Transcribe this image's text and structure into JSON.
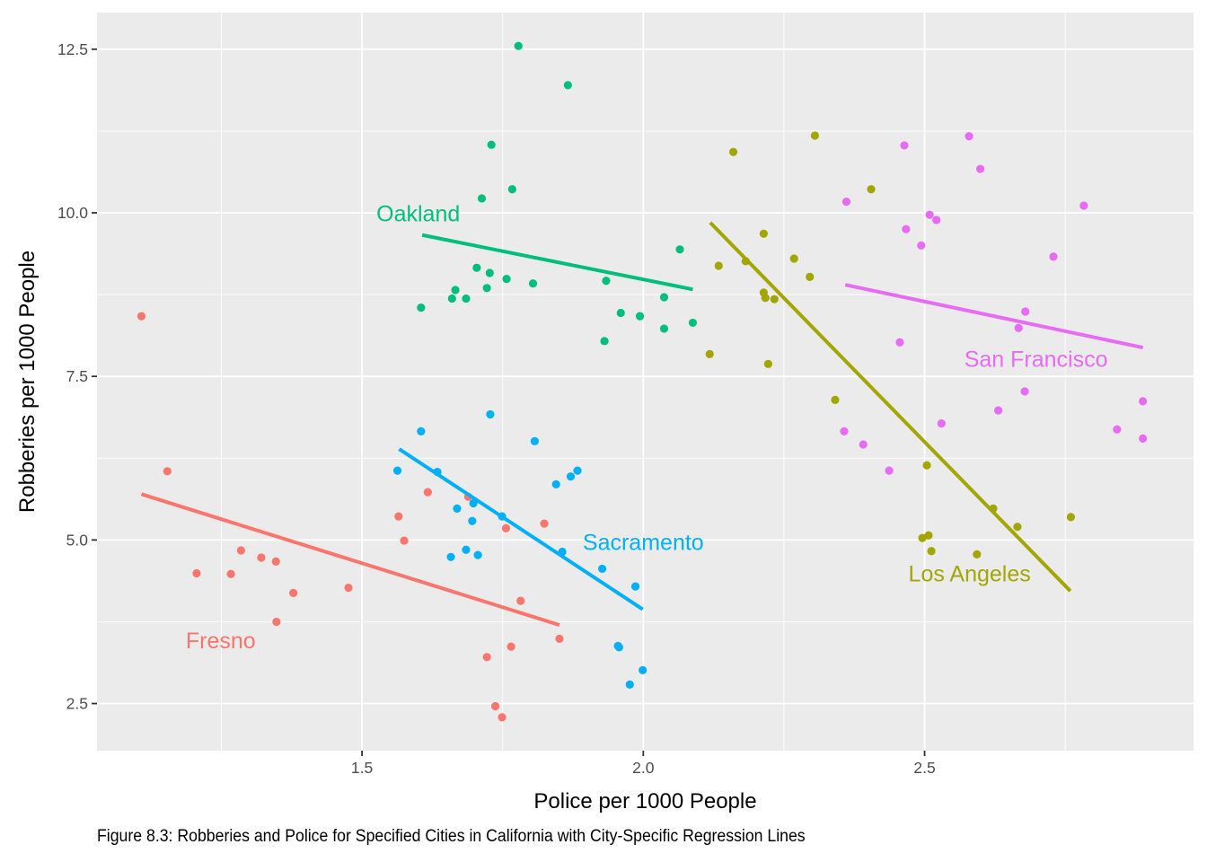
{
  "caption": "Figure 8.3: Robberies and Police for Specified Cities in California with City-Specific Regression Lines",
  "chart_data": {
    "type": "scatter",
    "title": "",
    "xlabel": "Police per 1000 People",
    "ylabel": "Robberies per 1000 People",
    "xlim": [
      1.029,
      2.978
    ],
    "ylim": [
      1.78,
      13.06
    ],
    "x_ticks": [
      1.5,
      2.0,
      2.5
    ],
    "x_tick_labels": [
      "1.5",
      "2.0",
      "2.5"
    ],
    "x_minor_ticks": [
      1.25,
      1.75,
      2.25,
      2.75
    ],
    "y_ticks": [
      2.5,
      5.0,
      7.5,
      10.0,
      12.5
    ],
    "y_tick_labels": [
      "2.5",
      "5.0",
      "7.5",
      "10.0",
      "12.5"
    ],
    "y_minor_ticks": [
      3.75,
      6.25,
      8.75,
      11.25
    ],
    "grid": true,
    "legend": "none (direct labels)",
    "background": "#EBEBEB",
    "series": [
      {
        "name": "Fresno",
        "color": "#F8766D",
        "label": {
          "text": "Fresno",
          "x": 1.249,
          "y": 3.47
        },
        "points": [
          [
            1.108,
            8.42
          ],
          [
            1.154,
            6.05
          ],
          [
            1.206,
            4.49
          ],
          [
            1.267,
            4.48
          ],
          [
            1.285,
            4.84
          ],
          [
            1.321,
            4.73
          ],
          [
            1.347,
            4.67
          ],
          [
            1.378,
            4.19
          ],
          [
            1.476,
            4.27
          ],
          [
            1.348,
            3.75
          ],
          [
            1.617,
            5.73
          ],
          [
            1.689,
            5.66
          ],
          [
            1.565,
            5.36
          ],
          [
            1.575,
            4.99
          ],
          [
            1.756,
            5.18
          ],
          [
            1.824,
            5.25
          ],
          [
            1.782,
            4.07
          ],
          [
            1.851,
            3.49
          ],
          [
            1.765,
            3.37
          ],
          [
            1.722,
            3.21
          ],
          [
            1.737,
            2.46
          ],
          [
            1.749,
            2.29
          ]
        ],
        "regression": {
          "x": [
            1.108,
            1.851
          ],
          "y": [
            5.7,
            3.7
          ]
        }
      },
      {
        "name": "Los Angeles",
        "color": "#A3A500",
        "label": {
          "text": "Los Angeles",
          "x": 2.58,
          "y": 4.49
        },
        "points": [
          [
            2.305,
            11.18
          ],
          [
            2.16,
            10.93
          ],
          [
            2.405,
            10.36
          ],
          [
            2.214,
            9.68
          ],
          [
            2.134,
            9.19
          ],
          [
            2.182,
            9.26
          ],
          [
            2.268,
            9.3
          ],
          [
            2.296,
            9.02
          ],
          [
            2.214,
            8.78
          ],
          [
            2.217,
            8.7
          ],
          [
            2.233,
            8.68
          ],
          [
            2.118,
            7.84
          ],
          [
            2.222,
            7.69
          ],
          [
            2.341,
            7.14
          ],
          [
            2.504,
            6.14
          ],
          [
            2.622,
            5.48
          ],
          [
            2.665,
            5.2
          ],
          [
            2.76,
            5.35
          ],
          [
            2.496,
            5.03
          ],
          [
            2.507,
            5.07
          ],
          [
            2.512,
            4.83
          ],
          [
            2.593,
            4.78
          ]
        ],
        "regression": {
          "x": [
            2.119,
            2.759
          ],
          "y": [
            9.85,
            4.22
          ]
        }
      },
      {
        "name": "Oakland",
        "color": "#00BF7D",
        "label": {
          "text": "Oakland",
          "x": 1.6,
          "y": 9.99
        },
        "points": [
          [
            1.778,
            12.55
          ],
          [
            1.866,
            11.95
          ],
          [
            1.73,
            11.04
          ],
          [
            1.767,
            10.36
          ],
          [
            1.713,
            10.22
          ],
          [
            2.065,
            9.44
          ],
          [
            1.704,
            9.16
          ],
          [
            1.727,
            9.08
          ],
          [
            1.757,
            8.99
          ],
          [
            1.804,
            8.92
          ],
          [
            1.722,
            8.85
          ],
          [
            1.934,
            8.96
          ],
          [
            1.666,
            8.82
          ],
          [
            1.66,
            8.69
          ],
          [
            1.685,
            8.69
          ],
          [
            1.605,
            8.55
          ],
          [
            2.037,
            8.71
          ],
          [
            1.96,
            8.47
          ],
          [
            1.994,
            8.42
          ],
          [
            2.088,
            8.32
          ],
          [
            2.037,
            8.23
          ],
          [
            1.931,
            8.04
          ]
        ],
        "regression": {
          "x": [
            1.607,
            2.088
          ],
          "y": [
            9.66,
            8.83
          ]
        }
      },
      {
        "name": "Sacramento",
        "color": "#00B0F6",
        "label": {
          "text": "Sacramento",
          "x": 2.0,
          "y": 4.97
        },
        "points": [
          [
            1.728,
            6.92
          ],
          [
            1.605,
            6.66
          ],
          [
            1.807,
            6.51
          ],
          [
            1.563,
            6.06
          ],
          [
            1.634,
            6.04
          ],
          [
            1.845,
            5.85
          ],
          [
            1.871,
            5.97
          ],
          [
            1.883,
            6.06
          ],
          [
            1.698,
            5.56
          ],
          [
            1.669,
            5.48
          ],
          [
            1.696,
            5.29
          ],
          [
            1.749,
            5.36
          ],
          [
            1.856,
            4.82
          ],
          [
            1.658,
            4.74
          ],
          [
            1.685,
            4.85
          ],
          [
            1.706,
            4.77
          ],
          [
            1.927,
            4.56
          ],
          [
            1.986,
            4.29
          ],
          [
            1.955,
            3.38
          ],
          [
            1.957,
            3.36
          ],
          [
            1.999,
            3.01
          ],
          [
            1.976,
            2.79
          ]
        ],
        "regression": {
          "x": [
            1.566,
            1.999
          ],
          "y": [
            6.39,
            3.94
          ]
        }
      },
      {
        "name": "San Francisco",
        "color": "#E76BF3",
        "label": {
          "text": "San Francisco",
          "x": 2.698,
          "y": 7.77
        },
        "points": [
          [
            2.464,
            11.03
          ],
          [
            2.361,
            10.17
          ],
          [
            2.509,
            9.97
          ],
          [
            2.521,
            9.89
          ],
          [
            2.467,
            9.75
          ],
          [
            2.494,
            9.5
          ],
          [
            2.456,
            8.02
          ],
          [
            2.579,
            11.17
          ],
          [
            2.599,
            10.67
          ],
          [
            2.783,
            10.11
          ],
          [
            2.729,
            9.33
          ],
          [
            2.679,
            8.49
          ],
          [
            2.667,
            8.24
          ],
          [
            2.678,
            7.27
          ],
          [
            2.631,
            6.98
          ],
          [
            2.53,
            6.78
          ],
          [
            2.357,
            6.66
          ],
          [
            2.391,
            6.46
          ],
          [
            2.437,
            6.06
          ],
          [
            2.888,
            7.12
          ],
          [
            2.842,
            6.69
          ],
          [
            2.888,
            6.55
          ]
        ],
        "regression": {
          "x": [
            2.359,
            2.888
          ],
          "y": [
            8.9,
            7.94
          ]
        }
      }
    ]
  }
}
